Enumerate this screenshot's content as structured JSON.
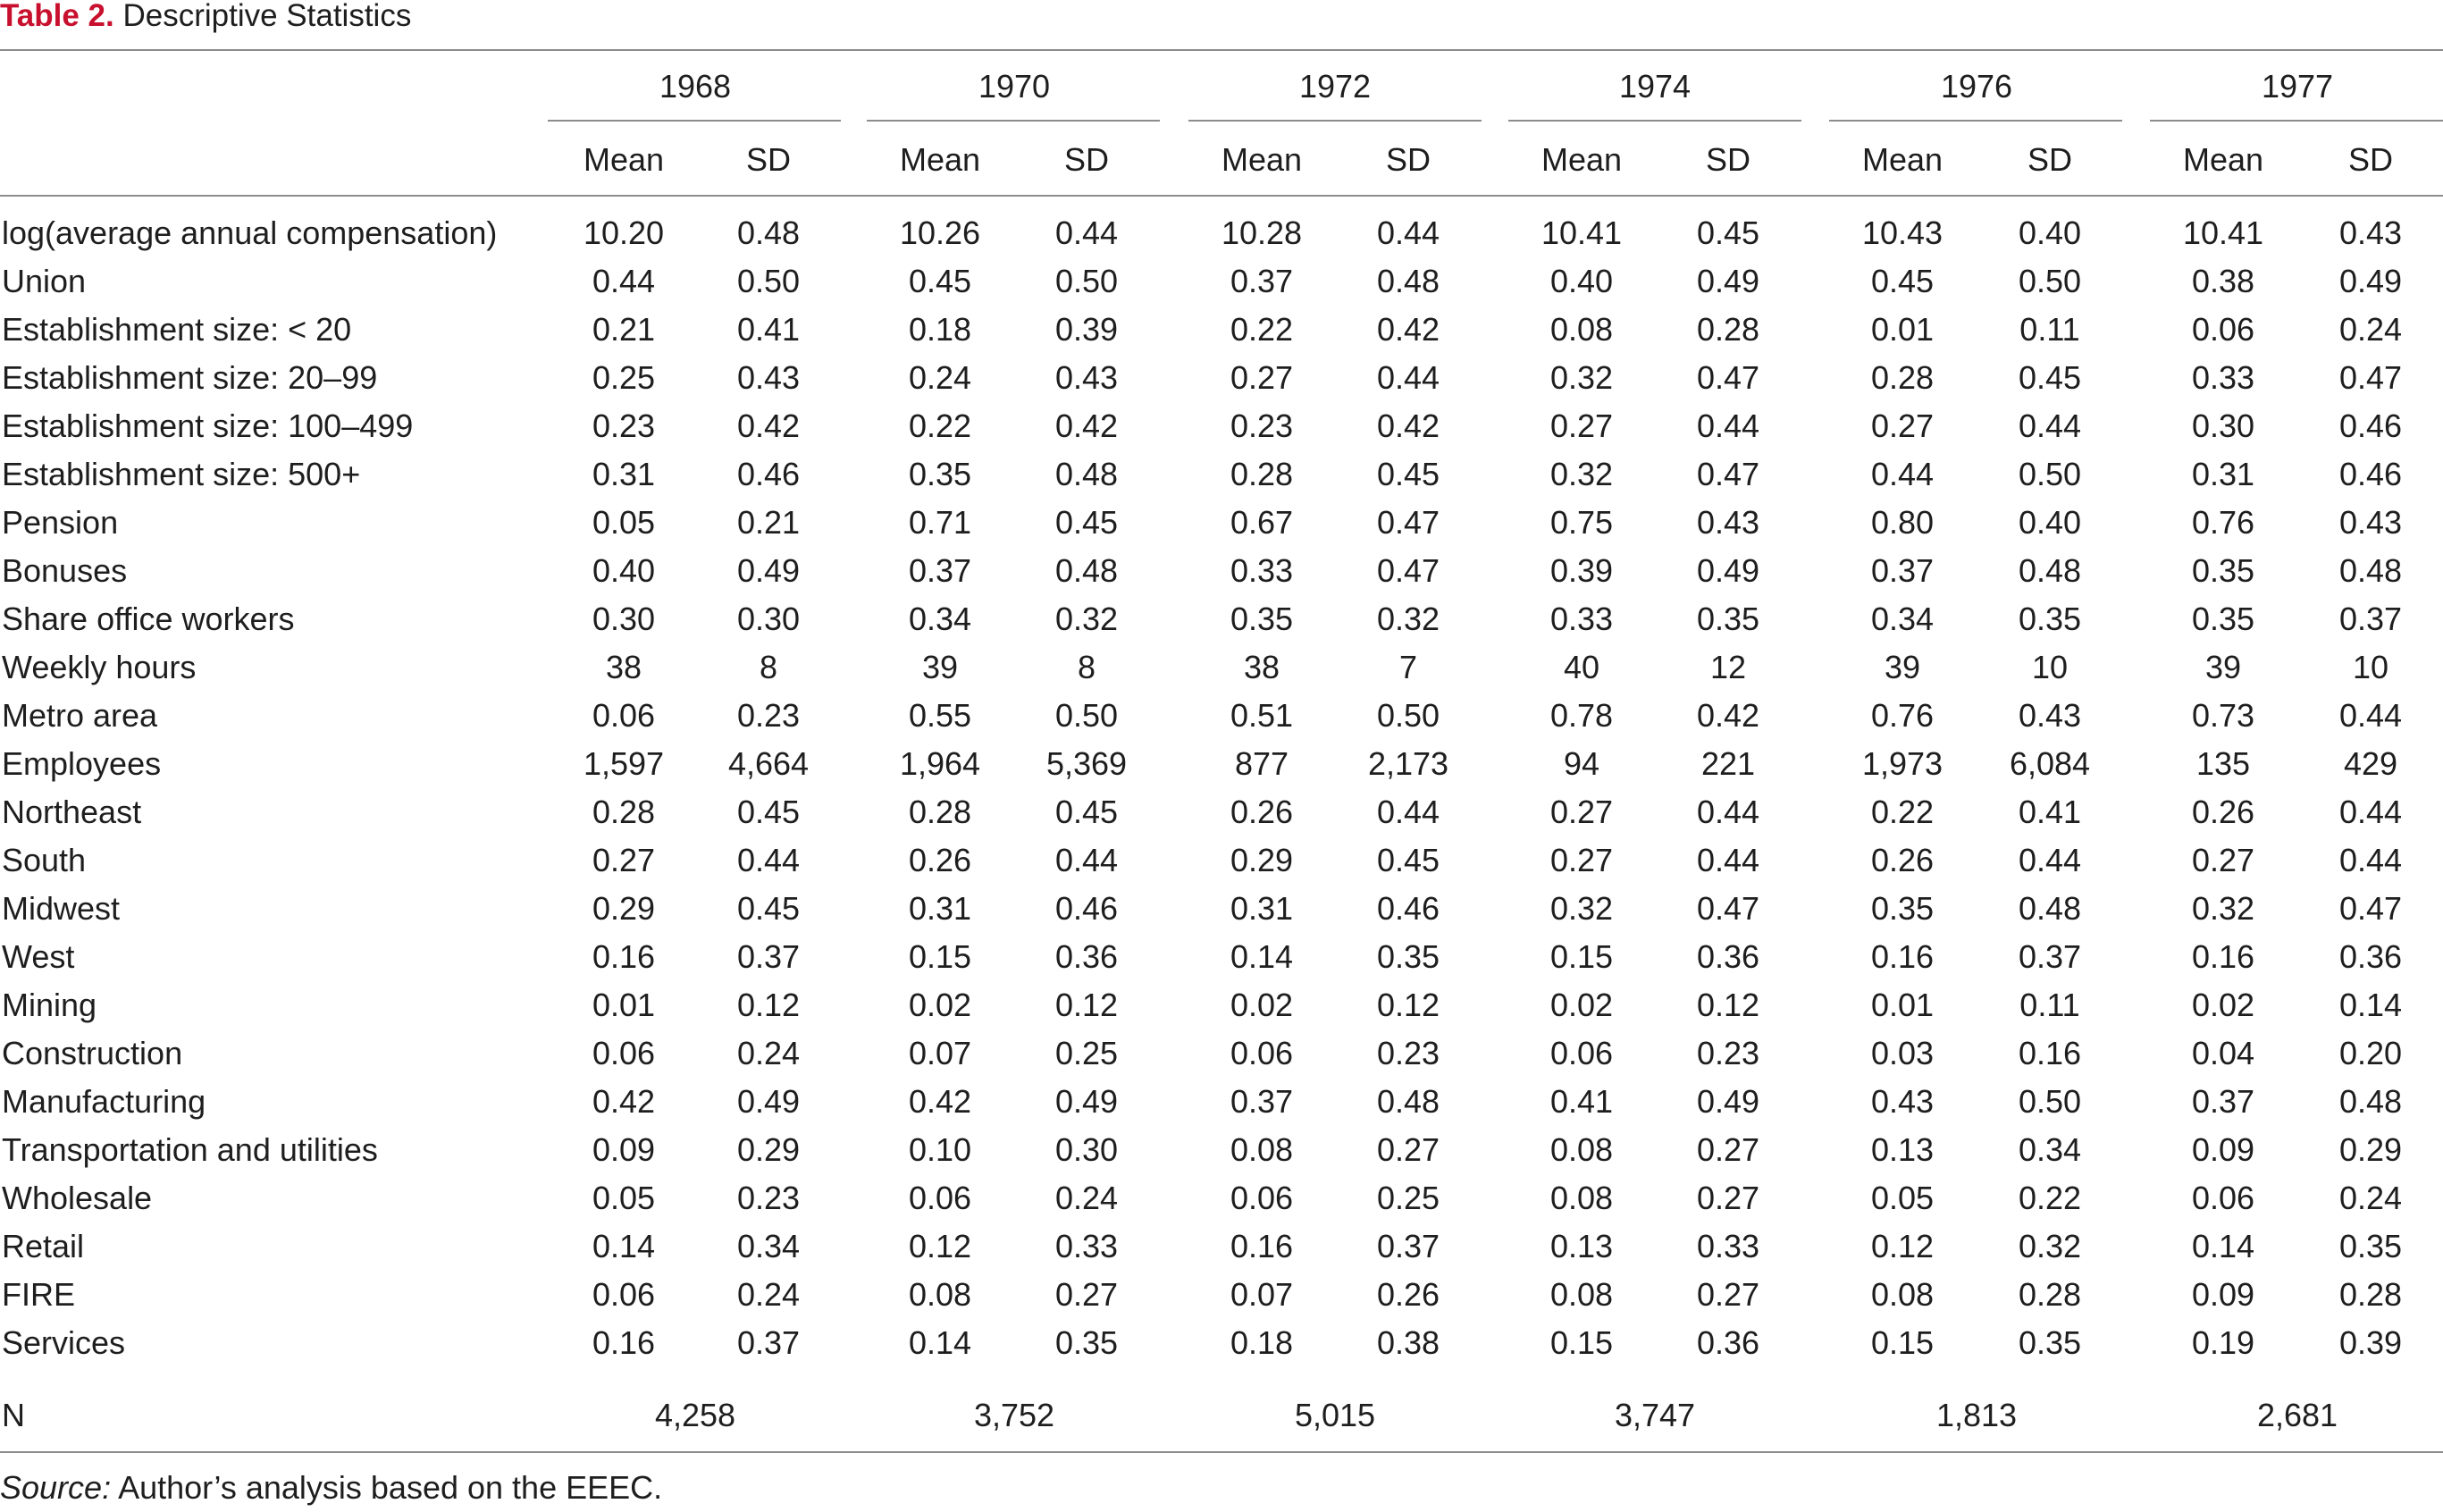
{
  "caption": {
    "label": "Table 2.",
    "title": "Descriptive Statistics"
  },
  "table": {
    "years": [
      "1968",
      "1970",
      "1972",
      "1974",
      "1976",
      "1977"
    ],
    "stat_headers": [
      "Mean",
      "SD"
    ],
    "rows": [
      {
        "label": "log(average annual compensation)",
        "values": [
          "10.20",
          "0.48",
          "10.26",
          "0.44",
          "10.28",
          "0.44",
          "10.41",
          "0.45",
          "10.43",
          "0.40",
          "10.41",
          "0.43"
        ]
      },
      {
        "label": "Union",
        "values": [
          "0.44",
          "0.50",
          "0.45",
          "0.50",
          "0.37",
          "0.48",
          "0.40",
          "0.49",
          "0.45",
          "0.50",
          "0.38",
          "0.49"
        ]
      },
      {
        "label": "Establishment size: < 20",
        "values": [
          "0.21",
          "0.41",
          "0.18",
          "0.39",
          "0.22",
          "0.42",
          "0.08",
          "0.28",
          "0.01",
          "0.11",
          "0.06",
          "0.24"
        ]
      },
      {
        "label": "Establishment size: 20–99",
        "values": [
          "0.25",
          "0.43",
          "0.24",
          "0.43",
          "0.27",
          "0.44",
          "0.32",
          "0.47",
          "0.28",
          "0.45",
          "0.33",
          "0.47"
        ]
      },
      {
        "label": "Establishment size: 100–499",
        "values": [
          "0.23",
          "0.42",
          "0.22",
          "0.42",
          "0.23",
          "0.42",
          "0.27",
          "0.44",
          "0.27",
          "0.44",
          "0.30",
          "0.46"
        ]
      },
      {
        "label": "Establishment size: 500+",
        "values": [
          "0.31",
          "0.46",
          "0.35",
          "0.48",
          "0.28",
          "0.45",
          "0.32",
          "0.47",
          "0.44",
          "0.50",
          "0.31",
          "0.46"
        ]
      },
      {
        "label": "Pension",
        "values": [
          "0.05",
          "0.21",
          "0.71",
          "0.45",
          "0.67",
          "0.47",
          "0.75",
          "0.43",
          "0.80",
          "0.40",
          "0.76",
          "0.43"
        ]
      },
      {
        "label": "Bonuses",
        "values": [
          "0.40",
          "0.49",
          "0.37",
          "0.48",
          "0.33",
          "0.47",
          "0.39",
          "0.49",
          "0.37",
          "0.48",
          "0.35",
          "0.48"
        ]
      },
      {
        "label": "Share office workers",
        "values": [
          "0.30",
          "0.30",
          "0.34",
          "0.32",
          "0.35",
          "0.32",
          "0.33",
          "0.35",
          "0.34",
          "0.35",
          "0.35",
          "0.37"
        ]
      },
      {
        "label": "Weekly hours",
        "values": [
          "38",
          "8",
          "39",
          "8",
          "38",
          "7",
          "40",
          "12",
          "39",
          "10",
          "39",
          "10"
        ]
      },
      {
        "label": "Metro area",
        "values": [
          "0.06",
          "0.23",
          "0.55",
          "0.50",
          "0.51",
          "0.50",
          "0.78",
          "0.42",
          "0.76",
          "0.43",
          "0.73",
          "0.44"
        ]
      },
      {
        "label": "Employees",
        "values": [
          "1,597",
          "4,664",
          "1,964",
          "5,369",
          "877",
          "2,173",
          "94",
          "221",
          "1,973",
          "6,084",
          "135",
          "429"
        ]
      },
      {
        "label": "Northeast",
        "values": [
          "0.28",
          "0.45",
          "0.28",
          "0.45",
          "0.26",
          "0.44",
          "0.27",
          "0.44",
          "0.22",
          "0.41",
          "0.26",
          "0.44"
        ]
      },
      {
        "label": "South",
        "values": [
          "0.27",
          "0.44",
          "0.26",
          "0.44",
          "0.29",
          "0.45",
          "0.27",
          "0.44",
          "0.26",
          "0.44",
          "0.27",
          "0.44"
        ]
      },
      {
        "label": "Midwest",
        "values": [
          "0.29",
          "0.45",
          "0.31",
          "0.46",
          "0.31",
          "0.46",
          "0.32",
          "0.47",
          "0.35",
          "0.48",
          "0.32",
          "0.47"
        ]
      },
      {
        "label": "West",
        "values": [
          "0.16",
          "0.37",
          "0.15",
          "0.36",
          "0.14",
          "0.35",
          "0.15",
          "0.36",
          "0.16",
          "0.37",
          "0.16",
          "0.36"
        ]
      },
      {
        "label": "Mining",
        "values": [
          "0.01",
          "0.12",
          "0.02",
          "0.12",
          "0.02",
          "0.12",
          "0.02",
          "0.12",
          "0.01",
          "0.11",
          "0.02",
          "0.14"
        ]
      },
      {
        "label": "Construction",
        "values": [
          "0.06",
          "0.24",
          "0.07",
          "0.25",
          "0.06",
          "0.23",
          "0.06",
          "0.23",
          "0.03",
          "0.16",
          "0.04",
          "0.20"
        ]
      },
      {
        "label": "Manufacturing",
        "values": [
          "0.42",
          "0.49",
          "0.42",
          "0.49",
          "0.37",
          "0.48",
          "0.41",
          "0.49",
          "0.43",
          "0.50",
          "0.37",
          "0.48"
        ]
      },
      {
        "label": "Transportation and utilities",
        "values": [
          "0.09",
          "0.29",
          "0.10",
          "0.30",
          "0.08",
          "0.27",
          "0.08",
          "0.27",
          "0.13",
          "0.34",
          "0.09",
          "0.29"
        ]
      },
      {
        "label": "Wholesale",
        "values": [
          "0.05",
          "0.23",
          "0.06",
          "0.24",
          "0.06",
          "0.25",
          "0.08",
          "0.27",
          "0.05",
          "0.22",
          "0.06",
          "0.24"
        ]
      },
      {
        "label": "Retail",
        "values": [
          "0.14",
          "0.34",
          "0.12",
          "0.33",
          "0.16",
          "0.37",
          "0.13",
          "0.33",
          "0.12",
          "0.32",
          "0.14",
          "0.35"
        ]
      },
      {
        "label": "FIRE",
        "values": [
          "0.06",
          "0.24",
          "0.08",
          "0.27",
          "0.07",
          "0.26",
          "0.08",
          "0.27",
          "0.08",
          "0.28",
          "0.09",
          "0.28"
        ]
      },
      {
        "label": "Services",
        "values": [
          "0.16",
          "0.37",
          "0.14",
          "0.35",
          "0.18",
          "0.38",
          "0.15",
          "0.36",
          "0.15",
          "0.35",
          "0.19",
          "0.39"
        ]
      }
    ],
    "n_row": {
      "label": "N",
      "values": [
        "4,258",
        "3,752",
        "5,015",
        "3,747",
        "1,813",
        "2,681"
      ]
    }
  },
  "source": {
    "label": "Source:",
    "text": " Author’s analysis based on the EEEC."
  }
}
